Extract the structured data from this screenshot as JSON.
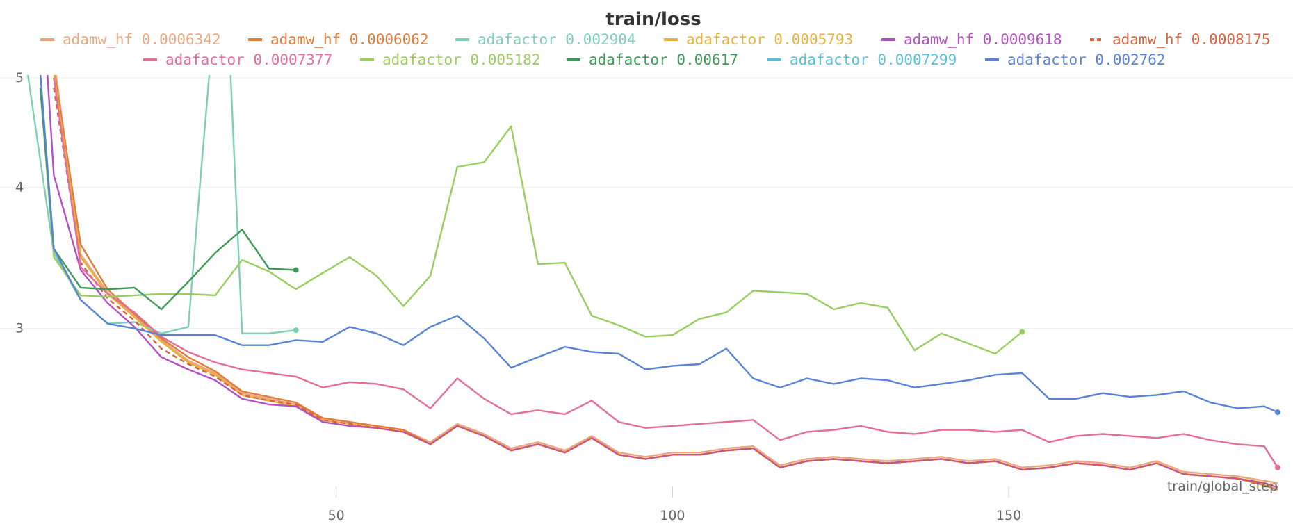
{
  "chart_data": {
    "type": "line",
    "title": "train/loss",
    "xlabel": "train/global_step",
    "ylabel": "",
    "xlim": [
      0,
      190
    ],
    "ylim": [
      2.15,
      5.0
    ],
    "y_scale": "log",
    "x_ticks": [
      50,
      100,
      150
    ],
    "y_ticks": [
      3,
      4,
      5
    ],
    "x_tick_labels": [
      "50",
      "100",
      "150"
    ],
    "y_tick_labels": [
      "3",
      "4",
      "5"
    ],
    "grid": true,
    "legend_position": "top",
    "series": [
      {
        "name": "adamw_hf 0.0006342",
        "color": "#e8a77f",
        "dash": false,
        "end_marker": false,
        "x": [
          8,
          12,
          16,
          20,
          24,
          28,
          32,
          36,
          40,
          44,
          48,
          52,
          56,
          60,
          64,
          68,
          72,
          76,
          80,
          84,
          88,
          92,
          96,
          100,
          104,
          108,
          112,
          116,
          120,
          124,
          128,
          132,
          136,
          140,
          144,
          148,
          152,
          156,
          160,
          164,
          168,
          172,
          176,
          180,
          184,
          188,
          190
        ],
        "y": [
          5.2,
          3.49,
          3.23,
          3.08,
          2.93,
          2.81,
          2.74,
          2.63,
          2.6,
          2.57,
          2.5,
          2.48,
          2.46,
          2.44,
          2.38,
          2.47,
          2.42,
          2.35,
          2.38,
          2.34,
          2.41,
          2.33,
          2.31,
          2.33,
          2.33,
          2.35,
          2.36,
          2.27,
          2.3,
          2.31,
          2.3,
          2.29,
          2.3,
          2.31,
          2.29,
          2.3,
          2.26,
          2.27,
          2.29,
          2.28,
          2.26,
          2.29,
          2.24,
          2.23,
          2.22,
          2.2,
          2.19
        ]
      },
      {
        "name": "adamw_hf 0.0006062",
        "color": "#e07b39",
        "dash": false,
        "end_marker": false,
        "x": [
          8,
          12,
          16,
          20,
          24,
          28,
          32,
          36,
          40,
          44,
          48,
          52,
          56,
          60,
          64,
          68,
          72,
          76,
          80,
          84,
          88,
          92,
          96,
          100,
          104,
          108,
          112,
          116,
          120,
          124,
          128,
          132,
          136,
          140,
          144,
          148,
          152,
          156,
          160,
          164,
          168,
          172,
          176,
          180,
          184,
          188,
          190
        ],
        "y": [
          5.1,
          3.56,
          3.25,
          3.09,
          2.94,
          2.83,
          2.75,
          2.64,
          2.61,
          2.58,
          2.5,
          2.48,
          2.46,
          2.44,
          2.37,
          2.46,
          2.41,
          2.34,
          2.37,
          2.33,
          2.4,
          2.32,
          2.3,
          2.32,
          2.32,
          2.34,
          2.35,
          2.26,
          2.29,
          2.3,
          2.29,
          2.28,
          2.29,
          2.3,
          2.28,
          2.29,
          2.25,
          2.26,
          2.28,
          2.27,
          2.25,
          2.28,
          2.23,
          2.22,
          2.21,
          2.18,
          2.16
        ]
      },
      {
        "name": "adafactor 0.002904",
        "color": "#7fcfb8",
        "dash": false,
        "end_marker": true,
        "x": [
          4,
          8,
          12,
          16,
          20,
          24,
          28,
          30,
          32,
          34,
          36,
          40,
          44
        ],
        "y": [
          5.1,
          3.5,
          3.18,
          3.03,
          3.04,
          2.97,
          3.01,
          4.2,
          5.8,
          5.5,
          2.97,
          2.97,
          2.99
        ]
      },
      {
        "name": "adafactor 0.0005793",
        "color": "#e8b23a",
        "dash": false,
        "end_marker": false,
        "x": [
          8,
          12,
          16,
          20,
          24,
          28,
          32,
          36,
          40,
          44,
          48,
          52,
          56,
          60,
          64,
          68,
          72,
          76,
          80,
          84,
          88,
          92,
          96,
          100,
          104,
          108,
          112,
          116,
          120,
          124,
          128,
          132,
          136,
          140,
          144,
          148,
          152,
          156,
          160,
          164,
          168,
          172,
          176,
          180,
          184,
          188,
          190
        ],
        "y": [
          5.05,
          3.47,
          3.22,
          3.07,
          2.92,
          2.8,
          2.73,
          2.62,
          2.59,
          2.56,
          2.49,
          2.47,
          2.45,
          2.43,
          2.37,
          2.46,
          2.41,
          2.34,
          2.37,
          2.33,
          2.4,
          2.32,
          2.3,
          2.32,
          2.32,
          2.34,
          2.35,
          2.26,
          2.29,
          2.3,
          2.29,
          2.28,
          2.29,
          2.3,
          2.28,
          2.29,
          2.25,
          2.26,
          2.28,
          2.27,
          2.25,
          2.28,
          2.23,
          2.22,
          2.21,
          2.19,
          2.17
        ]
      },
      {
        "name": "adamw_hf 0.0009618",
        "color": "#b44fc4",
        "dash": false,
        "end_marker": false,
        "x": [
          7,
          8,
          12,
          16,
          20,
          24,
          28,
          32,
          36,
          40,
          44,
          48,
          52,
          56,
          60,
          64,
          68,
          72,
          76,
          80,
          84,
          88,
          92,
          96,
          100,
          104,
          108,
          112,
          116,
          120,
          124,
          128,
          132,
          136,
          140,
          144,
          148,
          152,
          156,
          160,
          164,
          168,
          172,
          176,
          180,
          184,
          188,
          190
        ],
        "y": [
          5.1,
          4.1,
          3.38,
          3.16,
          3.01,
          2.83,
          2.76,
          2.7,
          2.6,
          2.57,
          2.56,
          2.48,
          2.46,
          2.45,
          2.43,
          2.37,
          2.46,
          2.41,
          2.34,
          2.37,
          2.33,
          2.4,
          2.32,
          2.3,
          2.32,
          2.32,
          2.34,
          2.35,
          2.26,
          2.29,
          2.3,
          2.29,
          2.28,
          2.29,
          2.3,
          2.28,
          2.29,
          2.25,
          2.26,
          2.28,
          2.27,
          2.25,
          2.28,
          2.23,
          2.22,
          2.21,
          2.19,
          2.17
        ]
      },
      {
        "name": "adamw_hf 0.0008175",
        "color": "#d9603b",
        "dash": true,
        "end_marker": false,
        "x": [
          8,
          12,
          16,
          20,
          24,
          28,
          32,
          36,
          40,
          44,
          48,
          52,
          56,
          60,
          64,
          68,
          72,
          76,
          80,
          84,
          88,
          92,
          96,
          100,
          104,
          108,
          112,
          116,
          120,
          124,
          128,
          132,
          136,
          140,
          144,
          148,
          152,
          156,
          160,
          164,
          168,
          172,
          176,
          180,
          184,
          188,
          190
        ],
        "y": [
          4.9,
          3.43,
          3.19,
          3.05,
          2.88,
          2.79,
          2.72,
          2.62,
          2.59,
          2.57,
          2.49,
          2.47,
          2.45,
          2.43,
          2.37,
          2.46,
          2.41,
          2.34,
          2.37,
          2.33,
          2.4,
          2.32,
          2.3,
          2.32,
          2.32,
          2.34,
          2.35,
          2.26,
          2.29,
          2.3,
          2.29,
          2.28,
          2.29,
          2.3,
          2.28,
          2.29,
          2.25,
          2.26,
          2.28,
          2.27,
          2.25,
          2.28,
          2.23,
          2.22,
          2.21,
          2.19,
          2.17
        ]
      },
      {
        "name": "adafactor 0.0007377",
        "color": "#e36d9b",
        "dash": false,
        "end_marker": true,
        "x": [
          8,
          12,
          16,
          20,
          24,
          28,
          32,
          36,
          40,
          44,
          48,
          52,
          56,
          60,
          64,
          68,
          72,
          76,
          80,
          84,
          88,
          92,
          96,
          100,
          104,
          108,
          112,
          116,
          120,
          124,
          128,
          132,
          136,
          140,
          144,
          148,
          152,
          156,
          160,
          164,
          168,
          172,
          176,
          180,
          184,
          188,
          190
        ],
        "y": [
          5.0,
          3.4,
          3.22,
          3.1,
          2.95,
          2.86,
          2.8,
          2.76,
          2.74,
          2.72,
          2.66,
          2.69,
          2.68,
          2.65,
          2.55,
          2.71,
          2.6,
          2.52,
          2.54,
          2.52,
          2.59,
          2.48,
          2.45,
          2.46,
          2.47,
          2.48,
          2.49,
          2.39,
          2.43,
          2.44,
          2.46,
          2.43,
          2.42,
          2.44,
          2.44,
          2.43,
          2.44,
          2.38,
          2.41,
          2.42,
          2.41,
          2.4,
          2.42,
          2.39,
          2.37,
          2.36,
          2.26
        ]
      },
      {
        "name": "adafactor 0.005182",
        "color": "#9acd5f",
        "dash": false,
        "end_marker": true,
        "x": [
          6,
          8,
          12,
          16,
          20,
          24,
          28,
          32,
          36,
          40,
          44,
          48,
          52,
          56,
          60,
          64,
          68,
          72,
          76,
          80,
          84,
          88,
          92,
          96,
          100,
          104,
          108,
          112,
          116,
          120,
          124,
          128,
          132,
          136,
          140,
          144,
          148,
          152
        ],
        "y": [
          4.9,
          3.47,
          3.21,
          3.2,
          3.21,
          3.22,
          3.22,
          3.21,
          3.45,
          3.37,
          3.25,
          3.36,
          3.47,
          3.34,
          3.14,
          3.34,
          4.17,
          4.21,
          4.53,
          3.42,
          3.43,
          3.08,
          3.02,
          2.95,
          2.96,
          3.06,
          3.1,
          3.24,
          3.23,
          3.22,
          3.12,
          3.16,
          3.13,
          2.87,
          2.97,
          2.91,
          2.85,
          2.98
        ]
      },
      {
        "name": "adafactor 0.00617",
        "color": "#3d9a56",
        "dash": false,
        "end_marker": true,
        "x": [
          6,
          8,
          12,
          16,
          20,
          24,
          28,
          32,
          36,
          40,
          44
        ],
        "y": [
          4.9,
          3.53,
          3.26,
          3.25,
          3.26,
          3.12,
          3.3,
          3.5,
          3.67,
          3.39,
          3.38
        ]
      },
      {
        "name": "adafactor 0.0007299",
        "color": "#5bc0d6",
        "dash": false,
        "end_marker": false,
        "x": [],
        "y": []
      },
      {
        "name": "adafactor 0.002762",
        "color": "#5a83d8",
        "dash": false,
        "end_marker": true,
        "x": [
          6,
          8,
          12,
          16,
          20,
          24,
          28,
          32,
          36,
          40,
          44,
          48,
          52,
          56,
          60,
          64,
          68,
          72,
          76,
          80,
          84,
          88,
          92,
          96,
          100,
          104,
          108,
          112,
          116,
          120,
          124,
          128,
          132,
          136,
          140,
          144,
          148,
          152,
          156,
          160,
          164,
          168,
          172,
          176,
          180,
          184,
          188,
          190
        ],
        "y": [
          5.05,
          3.53,
          3.18,
          3.03,
          3.0,
          2.96,
          2.96,
          2.96,
          2.9,
          2.9,
          2.93,
          2.92,
          3.01,
          2.97,
          2.9,
          3.01,
          3.08,
          2.94,
          2.77,
          2.83,
          2.89,
          2.86,
          2.85,
          2.76,
          2.78,
          2.79,
          2.88,
          2.71,
          2.66,
          2.71,
          2.68,
          2.71,
          2.7,
          2.66,
          2.68,
          2.7,
          2.73,
          2.74,
          2.6,
          2.6,
          2.63,
          2.61,
          2.62,
          2.64,
          2.58,
          2.55,
          2.56,
          2.53
        ]
      }
    ]
  }
}
